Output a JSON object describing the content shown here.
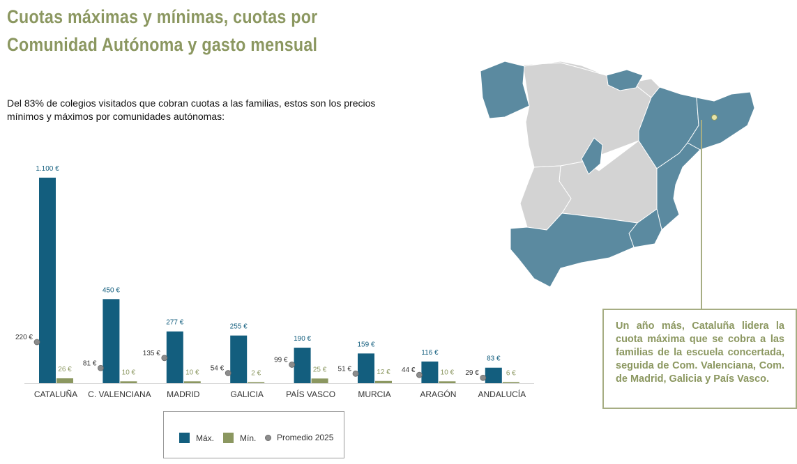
{
  "title": {
    "line1": "Cuotas máximas y mínimas, cuotas por",
    "line2": "Comunidad Autónoma y gasto mensual"
  },
  "intro": "Del 83% de colegios visitados que cobran cuotas a las familias, estos son los precios mínimos y máximos por comunidades autónomas:",
  "colors": {
    "max": "#135e7e",
    "min": "#8b9760",
    "avg": "#8c8c8c",
    "map_highlight": "#5b8aa0",
    "map_other": "#d3d3d3",
    "title": "#8b9760"
  },
  "chart_data": {
    "type": "bar",
    "categories": [
      "CATALUÑA",
      "C. VALENCIANA",
      "MADRID",
      "GALICIA",
      "PAÍS VASCO",
      "MURCIA",
      "ARAGÓN",
      "ANDALUCÍA"
    ],
    "series": [
      {
        "name": "Máx.",
        "values": [
          1100,
          450,
          277,
          255,
          190,
          159,
          116,
          83
        ],
        "labels": [
          "1.100 €",
          "450 €",
          "277 €",
          "255 €",
          "190 €",
          "159 €",
          "116 €",
          "83 €"
        ]
      },
      {
        "name": "Mín.",
        "values": [
          26,
          10,
          10,
          2,
          25,
          12,
          10,
          6
        ],
        "labels": [
          "26 €",
          "10 €",
          "10 €",
          "2 €",
          "25 €",
          "12 €",
          "10 €",
          "6 €"
        ]
      },
      {
        "name": "Promedio 2025",
        "values": [
          220,
          81,
          135,
          54,
          99,
          51,
          44,
          29
        ],
        "labels": [
          "220 €",
          "81 €",
          "135 €",
          "54 €",
          "99 €",
          "51 €",
          "44 €",
          "29 €"
        ]
      }
    ],
    "ylim": [
      0,
      1100
    ],
    "grid": false,
    "legend": "bottom"
  },
  "legend": {
    "max_label": "Máx.",
    "min_label": "Mín.",
    "avg_label": "Promedio 2025"
  },
  "callout": "Un año más, Cataluña lidera la cuota máxima que se cobra a las familias de la escuela concertada, seguida de Com. Valenciana, Com. de Madrid, Galicia y País Vasco."
}
